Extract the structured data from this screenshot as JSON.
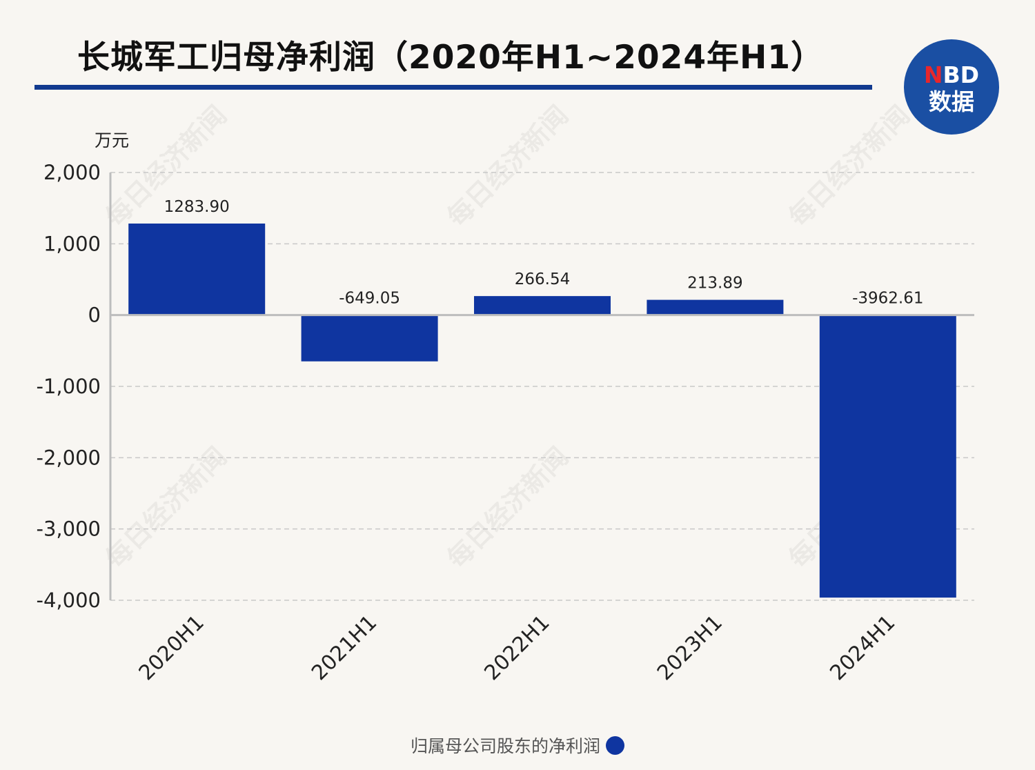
{
  "title": "长城军工归母净利润（2020年H1~2024年H1）",
  "logo": {
    "prefix": "N",
    "suffix": "BD",
    "subtitle": "数据"
  },
  "watermark": "每日经济新闻",
  "colors": {
    "bar": "#0f35a0",
    "accent": "#123a8f",
    "background": "#f8f6f2"
  },
  "chart_data": {
    "type": "bar",
    "categories": [
      "2020H1",
      "2021H1",
      "2022H1",
      "2023H1",
      "2024H1"
    ],
    "series": [
      {
        "name": "归属母公司股东的净利润",
        "values": [
          1283.9,
          -649.05,
          266.54,
          213.89,
          -3962.61
        ],
        "labels": [
          "1283.90",
          "-649.05",
          "266.54",
          "213.89",
          "-3962.61"
        ]
      }
    ],
    "ylabel": "万元",
    "ylim": [
      -4000,
      2000
    ],
    "yticks": [
      2000,
      1000,
      0,
      -1000,
      -2000,
      -3000,
      -4000
    ],
    "ytick_labels": [
      "2,000",
      "1,000",
      "0",
      "-1,000",
      "-2,000",
      "-3,000",
      "-4,000"
    ],
    "grid": true,
    "legend": "bottom-center"
  }
}
